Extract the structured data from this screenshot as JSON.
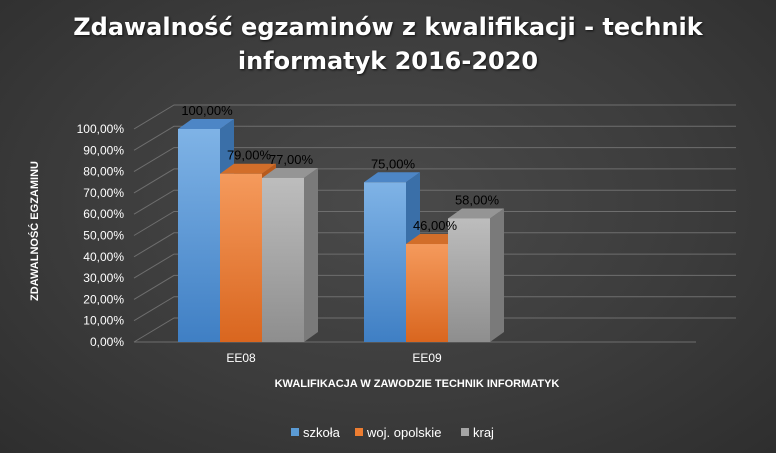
{
  "chart_data": {
    "type": "bar",
    "title": "Zdawalność egzaminów z kwalifikacji - technik informatyk 2016-2020",
    "xlabel": "KWALIFIKACJA W ZAWODZIE TECHNIK INFORMATYK",
    "ylabel": "ZDAWALNOŚĆ EGZAMINU",
    "categories": [
      "EE08",
      "EE09"
    ],
    "ylim": [
      0,
      100
    ],
    "y_ticks": [
      "0,00%",
      "10,00%",
      "20,00%",
      "30,00%",
      "40,00%",
      "50,00%",
      "60,00%",
      "70,00%",
      "80,00%",
      "90,00%",
      "100,00%"
    ],
    "series": [
      {
        "name": "szkoła",
        "values": [
          100,
          75
        ],
        "labels": [
          "100,00%",
          "75,00%"
        ],
        "color": "#5b9bd5"
      },
      {
        "name": "woj. opolskie",
        "values": [
          79,
          46
        ],
        "labels": [
          "79,00%",
          "46,00%"
        ],
        "color": "#ed7d31"
      },
      {
        "name": "kraj",
        "values": [
          77,
          58
        ],
        "labels": [
          "77,00%",
          "58,00%"
        ],
        "color": "#a5a5a5"
      }
    ],
    "grid": true,
    "legend": "bottom",
    "style": "3d-clustered-column"
  }
}
